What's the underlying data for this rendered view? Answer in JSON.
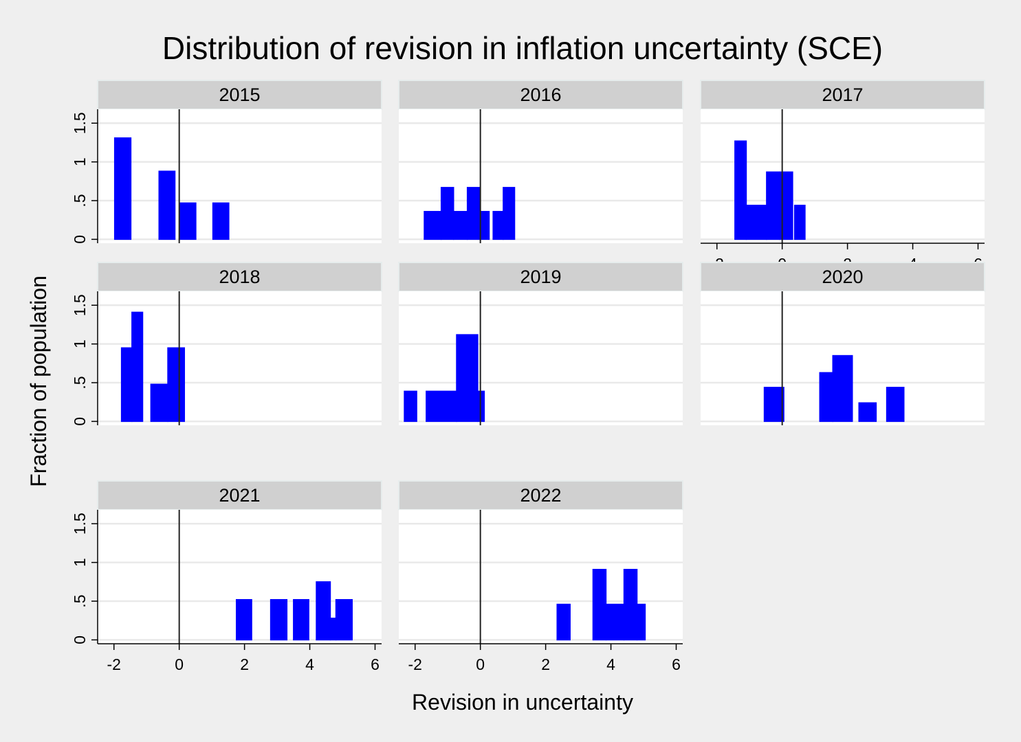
{
  "chart_data": {
    "type": "bar",
    "title": "Distribution of revision in inflation uncertainty (SCE)",
    "xlabel": "Revision in uncertainty",
    "ylabel": "Fraction of population",
    "xlim": [
      -2.5,
      6.2
    ],
    "ylim": [
      -0.05,
      1.68
    ],
    "xticks": [
      -2,
      0,
      2,
      4,
      6
    ],
    "yticks": [
      0,
      0.5,
      1,
      1.5
    ],
    "ytick_labels": [
      "0",
      ".5",
      "1",
      "1.5"
    ],
    "reference_line_x": 0,
    "bar_color": "#0000ff",
    "strip_color": "#d0d0d0",
    "panel_background": "#ffffff",
    "figure_background": "#efefef",
    "grid": true,
    "panels": [
      {
        "label": "2015",
        "bars": [
          {
            "x0": -1.98,
            "x1": -1.48,
            "y": 1.31
          },
          {
            "x0": -0.62,
            "x1": -0.13,
            "y": 0.88
          },
          {
            "x0": 0.01,
            "x1": 0.51,
            "y": 0.47
          },
          {
            "x0": 1.03,
            "x1": 1.52,
            "y": 0.47
          }
        ]
      },
      {
        "label": "2016",
        "bars": [
          {
            "x0": -1.72,
            "x1": -1.2,
            "y": 0.36
          },
          {
            "x0": -1.2,
            "x1": -0.82,
            "y": 0.67
          },
          {
            "x0": -0.82,
            "x1": -0.4,
            "y": 0.36
          },
          {
            "x0": -0.4,
            "x1": -0.02,
            "y": 0.67
          },
          {
            "x0": -0.02,
            "x1": 0.27,
            "y": 0.36
          },
          {
            "x0": 0.39,
            "x1": 0.7,
            "y": 0.36
          },
          {
            "x0": 0.7,
            "x1": 1.05,
            "y": 0.67
          }
        ]
      },
      {
        "label": "2017",
        "bars": [
          {
            "x0": -1.45,
            "x1": -1.1,
            "y": 1.27
          },
          {
            "x0": -1.1,
            "x1": -0.48,
            "y": 0.44
          },
          {
            "x0": -0.48,
            "x1": -0.08,
            "y": 0.87
          },
          {
            "x0": -0.08,
            "x1": 0.32,
            "y": 0.87
          },
          {
            "x0": 0.38,
            "x1": 0.7,
            "y": 0.44
          }
        ]
      },
      {
        "label": "2018",
        "bars": [
          {
            "x0": -1.77,
            "x1": -1.45,
            "y": 0.95
          },
          {
            "x0": -1.45,
            "x1": -1.12,
            "y": 1.41
          },
          {
            "x0": -0.87,
            "x1": -0.35,
            "y": 0.48
          },
          {
            "x0": -0.35,
            "x1": 0.16,
            "y": 0.95
          }
        ]
      },
      {
        "label": "2019",
        "bars": [
          {
            "x0": -2.33,
            "x1": -1.95,
            "y": 0.39
          },
          {
            "x0": -1.66,
            "x1": -0.73,
            "y": 0.39
          },
          {
            "x0": -0.73,
            "x1": -0.08,
            "y": 1.12
          },
          {
            "x0": -0.08,
            "x1": 0.12,
            "y": 0.39
          }
        ]
      },
      {
        "label": "2020",
        "bars": [
          {
            "x0": -0.55,
            "x1": 0.05,
            "y": 0.44
          },
          {
            "x0": 1.15,
            "x1": 1.55,
            "y": 0.63
          },
          {
            "x0": 1.55,
            "x1": 2.15,
            "y": 0.85
          },
          {
            "x0": 2.35,
            "x1": 2.88,
            "y": 0.24
          },
          {
            "x0": 3.2,
            "x1": 3.73,
            "y": 0.44
          }
        ]
      },
      {
        "label": "2021",
        "bars": [
          {
            "x0": 1.75,
            "x1": 2.22,
            "y": 0.52
          },
          {
            "x0": 2.8,
            "x1": 3.3,
            "y": 0.52
          },
          {
            "x0": 3.5,
            "x1": 3.97,
            "y": 0.52
          },
          {
            "x0": 4.2,
            "x1": 4.63,
            "y": 0.75
          },
          {
            "x0": 4.63,
            "x1": 4.8,
            "y": 0.28
          },
          {
            "x0": 4.8,
            "x1": 5.3,
            "y": 0.52
          }
        ]
      },
      {
        "label": "2022",
        "bars": [
          {
            "x0": 2.35,
            "x1": 2.75,
            "y": 0.46
          },
          {
            "x0": 3.45,
            "x1": 3.85,
            "y": 0.91
          },
          {
            "x0": 3.85,
            "x1": 4.4,
            "y": 0.46
          },
          {
            "x0": 4.4,
            "x1": 4.8,
            "y": 0.91
          },
          {
            "x0": 4.8,
            "x1": 5.05,
            "y": 0.46
          }
        ]
      }
    ]
  }
}
